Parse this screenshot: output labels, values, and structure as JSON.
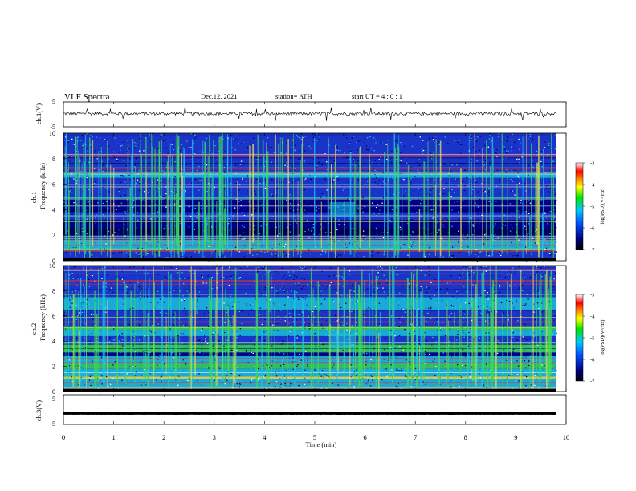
{
  "header": {
    "title": "VLF  Spectra",
    "date": "Dec.12, 2021",
    "station": "station= ATH",
    "start": "start  UT  =   4  : 0  : 1"
  },
  "chart_data": [
    {
      "type": "line",
      "panel": "ch1-waveform",
      "ylabel": "ch.1(V)",
      "yticks": [
        "5",
        "-5"
      ],
      "ylim": [
        -5,
        5
      ],
      "xlim": [
        0,
        10
      ],
      "description_values": {
        "baseline": 0.3,
        "end_time_min": 9.8
      }
    },
    {
      "type": "heatmap",
      "panel": "ch1-spectrogram",
      "ylabel_top": "ch.1",
      "ylabel": "Frequency  (kHz)",
      "yticks": [
        "0",
        "2",
        "4",
        "6",
        "8",
        "10"
      ],
      "ylim": [
        0,
        10
      ],
      "xlim": [
        0,
        10
      ],
      "end_time_min": 9.8,
      "colorbar": {
        "label": "log(PSD)(V²/Hz)",
        "ticks": [
          "-3",
          "-4",
          "-5",
          "-6",
          "-7"
        ],
        "range": [
          -7,
          -3
        ]
      }
    },
    {
      "type": "heatmap",
      "panel": "ch2-spectrogram",
      "ylabel_top": "ch.2",
      "ylabel": "Frequency  (kHz)",
      "yticks": [
        "0",
        "2",
        "4",
        "6",
        "8",
        "10"
      ],
      "ylim": [
        0,
        10
      ],
      "xlim": [
        0,
        10
      ],
      "end_time_min": 9.8,
      "colorbar": {
        "label": "log(PSD)(V²/Hz)",
        "ticks": [
          "-3",
          "-4",
          "-5",
          "-6",
          "-7"
        ],
        "range": [
          -7,
          -3
        ]
      }
    },
    {
      "type": "line",
      "panel": "ch3-waveform",
      "ylabel": "ch.3(V)",
      "yticks": [
        "5",
        "-5"
      ],
      "ylim": [
        -5,
        5
      ],
      "xlim": [
        0,
        10
      ],
      "description_values": {
        "baseline": -1.3,
        "end_time_min": 9.8
      }
    }
  ],
  "x_axis": {
    "label": "Time  (min)",
    "ticks": [
      "0",
      "1",
      "2",
      "3",
      "4",
      "5",
      "6",
      "7",
      "8",
      "9",
      "10"
    ]
  },
  "colors": {
    "deep": "#000050",
    "navy": "#00008c",
    "blue": "#1e3cd2",
    "cyan": "#1ec8e6",
    "green": "#3cdc5a",
    "yellow": "#e6e650",
    "red": "#e63232"
  }
}
